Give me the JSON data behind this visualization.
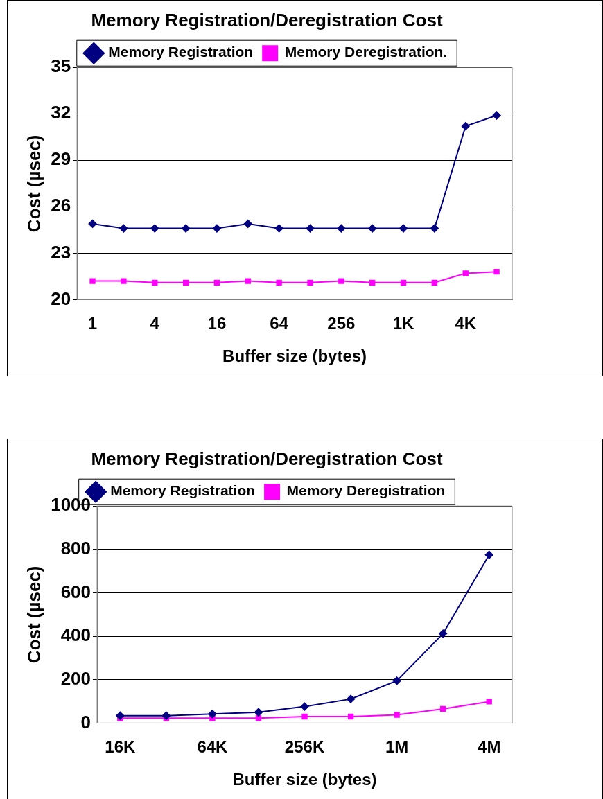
{
  "chart_data": [
    {
      "type": "line",
      "title": "Memory Registration/Deregistration Cost",
      "xlabel": "Buffer size (bytes)",
      "ylabel": "Cost (µsec)",
      "categories": [
        "1",
        null,
        "4",
        null,
        "16",
        null,
        "64",
        null,
        "256",
        null,
        "1K",
        null,
        "4K",
        null
      ],
      "series": [
        {
          "name": "Memory Registration",
          "color": "#000080",
          "marker": "diamond",
          "values": [
            24.9,
            24.6,
            24.6,
            24.6,
            24.6,
            24.9,
            24.6,
            24.6,
            24.6,
            24.6,
            24.6,
            24.6,
            31.2,
            31.9
          ]
        },
        {
          "name": "Memory Deregistration.",
          "color": "#ff00ff",
          "marker": "square",
          "values": [
            21.2,
            21.2,
            21.1,
            21.1,
            21.1,
            21.2,
            21.1,
            21.1,
            21.2,
            21.1,
            21.1,
            21.1,
            21.7,
            21.8
          ]
        }
      ],
      "ylim": [
        20,
        35
      ],
      "yticks": [
        20,
        23,
        26,
        29,
        32,
        35
      ],
      "grid": "y",
      "legend": "top"
    },
    {
      "type": "line",
      "title": "Memory Registration/Deregistration Cost",
      "xlabel": "Buffer size (bytes)",
      "ylabel": "Cost (µsec)",
      "categories": [
        "16K",
        null,
        "64K",
        null,
        "256K",
        null,
        "1M",
        null,
        "4M"
      ],
      "series": [
        {
          "name": "Memory Registration",
          "color": "#000080",
          "marker": "diamond",
          "values": [
            34,
            34,
            42,
            50,
            76,
            111,
            195,
            412,
            775
          ]
        },
        {
          "name": "Memory Deregistration",
          "color": "#ff00ff",
          "marker": "square",
          "values": [
            23,
            23,
            23,
            23,
            30,
            30,
            38,
            65,
            99
          ]
        }
      ],
      "ylim": [
        0,
        1000
      ],
      "yticks": [
        0,
        200,
        400,
        600,
        800,
        1000
      ],
      "grid": "y",
      "legend": "top"
    }
  ]
}
